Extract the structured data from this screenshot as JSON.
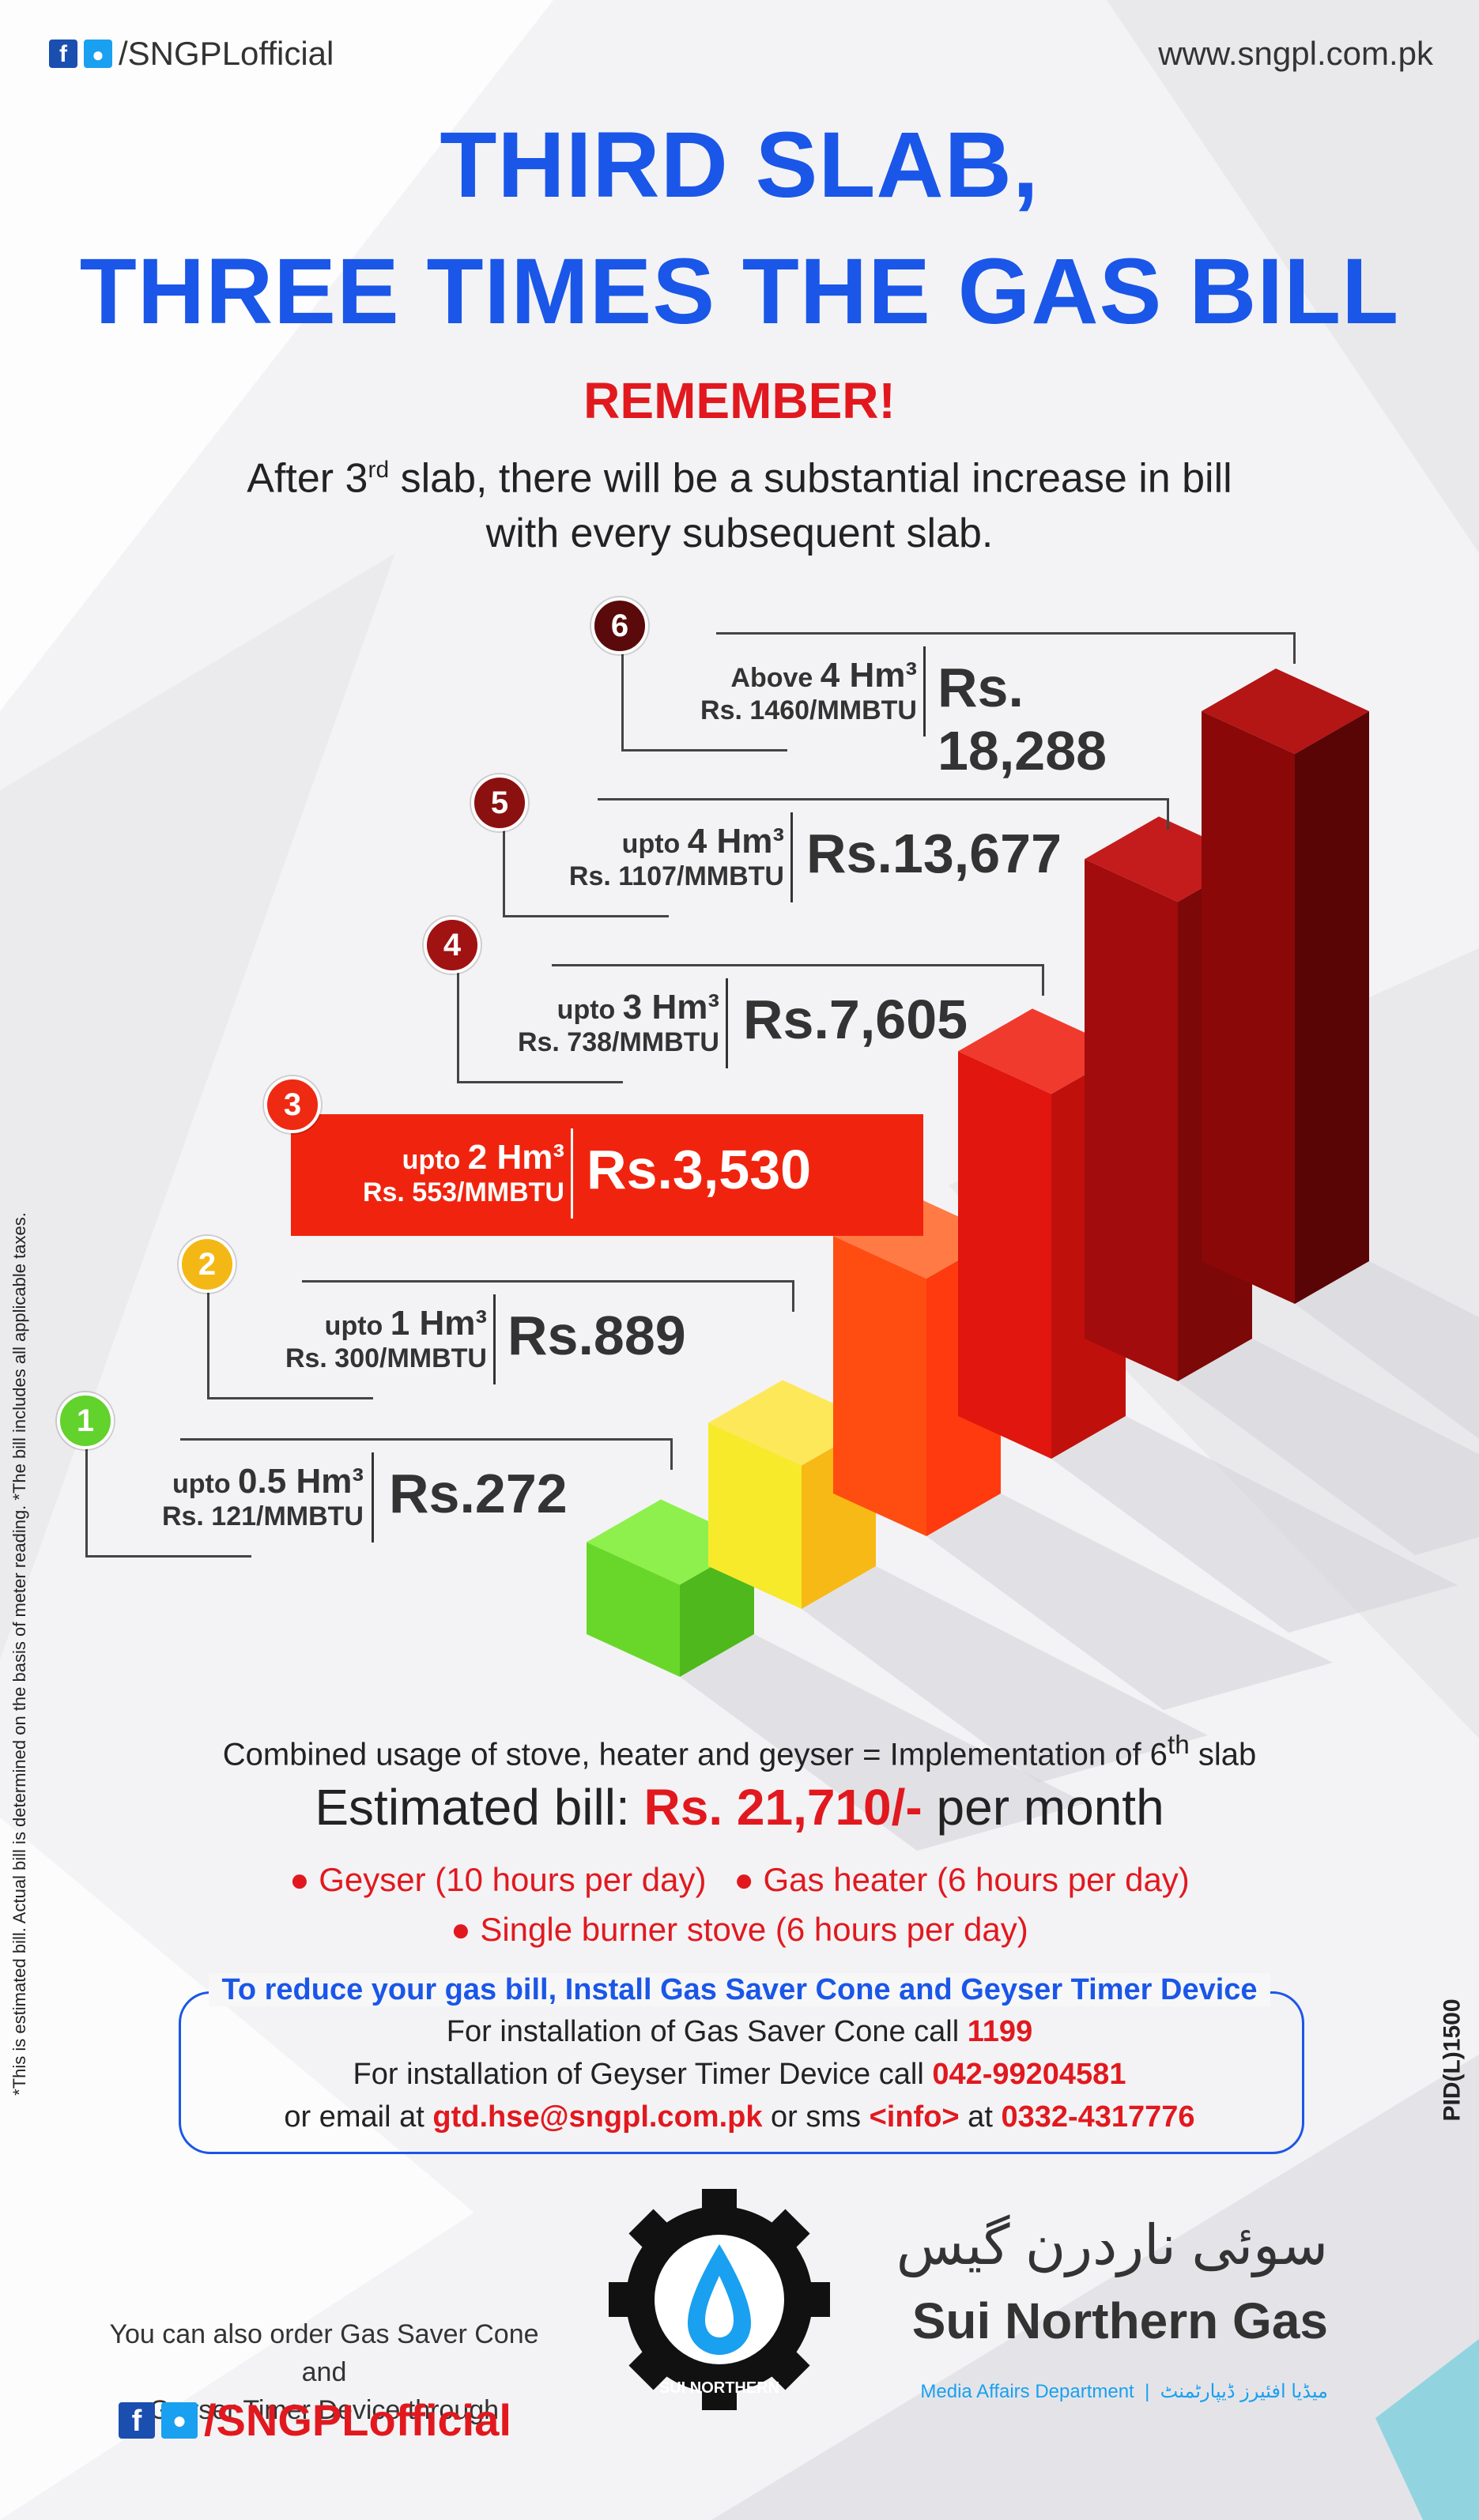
{
  "header": {
    "social_handle": "/SNGPLofficial",
    "website": "www.sngpl.com.pk",
    "fb_icon": "f",
    "tw_icon": "t"
  },
  "title": {
    "line1": "THIRD SLAB,",
    "line2": "THREE TIMES THE GAS BILL"
  },
  "remember": "REMEMBER!",
  "intro": {
    "part1": "After 3",
    "sup": "rd",
    "part2": " slab, there will be a substantial increase in bill",
    "line2": "with every subsequent slab."
  },
  "slabs": [
    {
      "num": "1",
      "usage_prefix": "upto",
      "usage": "0.5 Hm³",
      "rate": "Rs. 121/MMBTU",
      "price": "Rs.272",
      "color": "#62d22c"
    },
    {
      "num": "2",
      "usage_prefix": "upto",
      "usage": "1 Hm³",
      "rate": "Rs. 300/MMBTU",
      "price": "Rs.889",
      "color": "#f4b816"
    },
    {
      "num": "3",
      "usage_prefix": "upto",
      "usage": "2 Hm³",
      "rate": "Rs. 553/MMBTU",
      "price": "Rs.3,530",
      "color": "#ee2a12"
    },
    {
      "num": "4",
      "usage_prefix": "upto",
      "usage": "3 Hm³",
      "rate": "Rs. 738/MMBTU",
      "price": "Rs.7,605",
      "color": "#a11212"
    },
    {
      "num": "5",
      "usage_prefix": "upto",
      "usage": "4 Hm³",
      "rate": "Rs. 1107/MMBTU",
      "price": "Rs.13,677",
      "color": "#8b1010"
    },
    {
      "num": "6",
      "usage_prefix": "Above",
      "usage": "4 Hm³",
      "rate": "Rs. 1460/MMBTU",
      "price": "Rs. 18,288",
      "color": "#5a0a0a"
    }
  ],
  "bars": [
    {
      "value": 272,
      "front": "#69d72a",
      "side": "#4fb81c",
      "top": "#8ef04d"
    },
    {
      "value": 889,
      "front": "#f6ea2b",
      "side": "#f7b915",
      "top": "#fde85a"
    },
    {
      "value": 3530,
      "front": "#ff4d12",
      "side": "#ff3a0e",
      "top": "#ff7a45"
    },
    {
      "value": 7605,
      "front": "#e0160f",
      "side": "#c0100c",
      "top": "#f03a2e"
    },
    {
      "value": 13677,
      "front": "#a20c0c",
      "side": "#7c0808",
      "top": "#c41c1c"
    },
    {
      "value": 18288,
      "front": "#8a0808",
      "side": "#5a0505",
      "top": "#b41515"
    }
  ],
  "combined": {
    "text1": "Combined usage of stove, heater and geyser = Implementation of 6",
    "sup": "th",
    "text2": " slab"
  },
  "estimate": {
    "label": "Estimated bill: ",
    "amount": "Rs. 21,710/-",
    "suffix": " per month"
  },
  "usage_items": [
    "Geyser (10 hours per day)",
    "Gas heater (6 hours per day)",
    "Single burner stove (6 hours per day)"
  ],
  "tips": {
    "heading": "To reduce your gas bill, Install Gas Saver Cone and Geyser Timer Device",
    "cone_text": "For installation of Gas Saver Cone call ",
    "cone_phone": "1199",
    "timer_text": "For installation of Geyser Timer Device call ",
    "timer_phone": "042-99204581",
    "email_prefix": "or email at ",
    "email": "gtd.hse@sngpl.com.pk",
    "sms_prefix": " or sms ",
    "sms_code": "<info>",
    "sms_at": " at ",
    "sms_number": "0332-4317776"
  },
  "disclaimer": "*This is estimated bill. Actual bill is determined on the basis of meter reading. *The bill includes all applicable taxes.",
  "pid": "PID(L)1500",
  "order": {
    "line1": "You can also order Gas Saver Cone and",
    "line2": "Geyser Timer Device through",
    "handle": "/SNGPLofficial"
  },
  "logo": {
    "ring_text": "SUI NORTHERN",
    "urdu_name": "سوئی ناردرن گیس",
    "name": "Sui Northern Gas",
    "department": "Media Affairs Department",
    "department_urdu": "میڈیا افئیرز ڈیپارٹمنٹ"
  }
}
